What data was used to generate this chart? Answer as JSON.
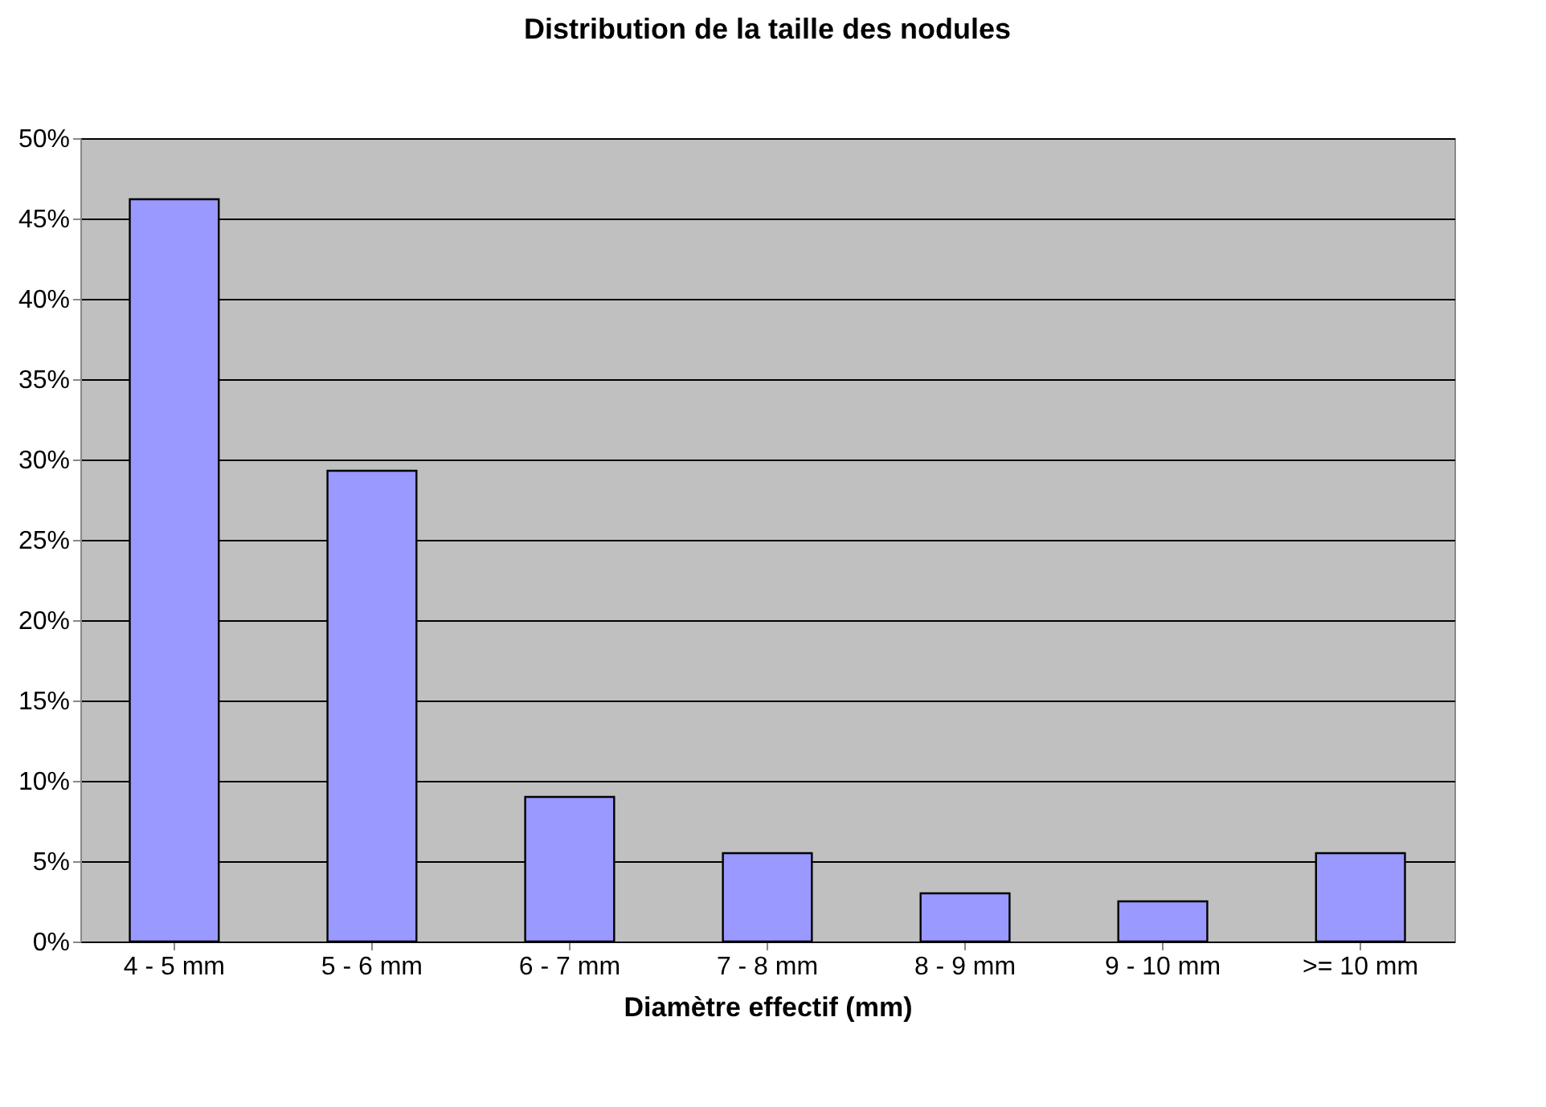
{
  "chart_data": {
    "type": "bar",
    "title": "Distribution de la taille des nodules",
    "xlabel": "Diamètre effectif (mm)",
    "categories": [
      "4 - 5 mm",
      "5 - 6 mm",
      "6 - 7 mm",
      "7 - 8 mm",
      "8 - 9 mm",
      "9 - 10 mm",
      ">= 10 mm"
    ],
    "values": [
      46.2,
      29.3,
      9,
      5.5,
      3,
      2.5,
      5.5
    ],
    "color": "#9999ff",
    "ylim": [
      0,
      50
    ],
    "yticks": [
      {
        "value": 0,
        "label": "0%"
      },
      {
        "value": 5,
        "label": "5%"
      },
      {
        "value": 10,
        "label": "10%"
      },
      {
        "value": 15,
        "label": "15%"
      },
      {
        "value": 20,
        "label": "20%"
      },
      {
        "value": 25,
        "label": "25%"
      },
      {
        "value": 30,
        "label": "30%"
      },
      {
        "value": 35,
        "label": "35%"
      },
      {
        "value": 40,
        "label": "40%"
      },
      {
        "value": 45,
        "label": "45%"
      },
      {
        "value": 50,
        "label": "50%"
      }
    ],
    "grid": "y"
  }
}
